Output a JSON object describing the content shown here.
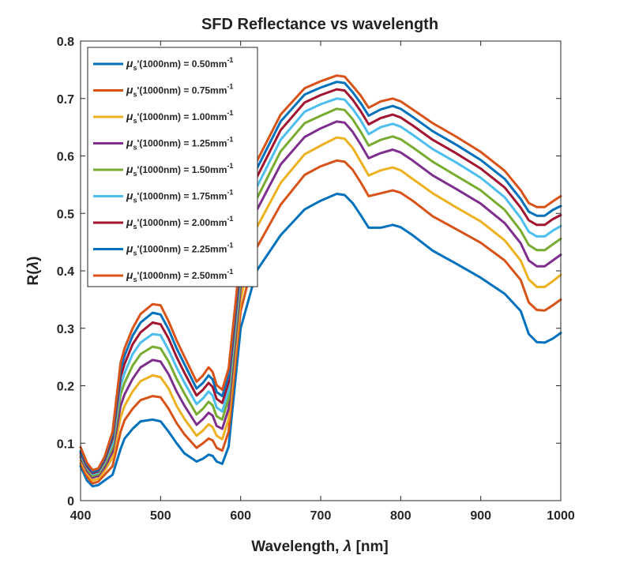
{
  "chart_data": {
    "type": "line",
    "title": "SFD Reflectance vs wavelength",
    "xlabel_prefix": "Wavelength, ",
    "xlabel_symbol": "λ",
    "xlabel_suffix": " [nm]",
    "ylabel_prefix": "R(",
    "ylabel_symbol": "λ",
    "ylabel_suffix": ")",
    "xlim": [
      400,
      1000
    ],
    "ylim": [
      0,
      0.8
    ],
    "xticks": [
      "400",
      "500",
      "600",
      "700",
      "800",
      "900",
      "1000"
    ],
    "yticks": [
      "0",
      "0.1",
      "0.2",
      "0.3",
      "0.4",
      "0.5",
      "0.6",
      "0.7",
      "0.8"
    ],
    "legend_position": "top-left",
    "legend_symbol": "μ",
    "legend_sub": "s",
    "legend_mid": "'(1000nm) = ",
    "legend_unit": "mm",
    "legend_exp": "-1",
    "x": [
      400,
      408,
      415,
      422,
      430,
      440,
      450,
      455,
      465,
      475,
      490,
      500,
      510,
      520,
      530,
      545,
      553,
      560,
      565,
      570,
      577,
      585,
      600,
      620,
      650,
      680,
      700,
      720,
      730,
      740,
      750,
      760,
      775,
      790,
      800,
      815,
      840,
      870,
      900,
      930,
      950,
      960,
      970,
      980,
      990,
      1000
    ],
    "series": [
      {
        "name": "0.50",
        "color": "#0072BD",
        "values": [
          0.06,
          0.035,
          0.025,
          0.027,
          0.035,
          0.045,
          0.09,
          0.108,
          0.125,
          0.138,
          0.141,
          0.138,
          0.12,
          0.1,
          0.082,
          0.068,
          0.073,
          0.08,
          0.078,
          0.068,
          0.064,
          0.094,
          0.3,
          0.4,
          0.462,
          0.507,
          0.522,
          0.534,
          0.532,
          0.518,
          0.497,
          0.475,
          0.475,
          0.48,
          0.476,
          0.462,
          0.435,
          0.412,
          0.388,
          0.36,
          0.33,
          0.29,
          0.276,
          0.275,
          0.282,
          0.292
        ]
      },
      {
        "name": "0.75",
        "color": "#D95319",
        "values": [
          0.065,
          0.042,
          0.03,
          0.033,
          0.045,
          0.06,
          0.12,
          0.14,
          0.16,
          0.175,
          0.182,
          0.18,
          0.16,
          0.135,
          0.115,
          0.092,
          0.1,
          0.108,
          0.105,
          0.092,
          0.087,
          0.12,
          0.33,
          0.44,
          0.515,
          0.567,
          0.582,
          0.592,
          0.59,
          0.576,
          0.554,
          0.53,
          0.535,
          0.54,
          0.536,
          0.522,
          0.495,
          0.472,
          0.449,
          0.418,
          0.384,
          0.345,
          0.332,
          0.331,
          0.34,
          0.35
        ]
      },
      {
        "name": "1.00",
        "color": "#EDB120",
        "values": [
          0.07,
          0.048,
          0.035,
          0.038,
          0.052,
          0.075,
          0.145,
          0.165,
          0.19,
          0.208,
          0.218,
          0.215,
          0.195,
          0.165,
          0.142,
          0.113,
          0.122,
          0.133,
          0.128,
          0.113,
          0.107,
          0.142,
          0.35,
          0.475,
          0.553,
          0.603,
          0.618,
          0.632,
          0.63,
          0.614,
          0.59,
          0.566,
          0.575,
          0.58,
          0.575,
          0.56,
          0.535,
          0.51,
          0.486,
          0.453,
          0.418,
          0.385,
          0.372,
          0.372,
          0.382,
          0.393
        ]
      },
      {
        "name": "1.25",
        "color": "#7E2F8E",
        "values": [
          0.075,
          0.052,
          0.04,
          0.043,
          0.058,
          0.085,
          0.165,
          0.185,
          0.212,
          0.232,
          0.245,
          0.242,
          0.22,
          0.19,
          0.165,
          0.132,
          0.142,
          0.153,
          0.148,
          0.13,
          0.125,
          0.16,
          0.37,
          0.505,
          0.585,
          0.633,
          0.648,
          0.66,
          0.658,
          0.642,
          0.62,
          0.596,
          0.605,
          0.611,
          0.606,
          0.592,
          0.566,
          0.542,
          0.517,
          0.483,
          0.448,
          0.418,
          0.408,
          0.408,
          0.418,
          0.428
        ]
      },
      {
        "name": "1.50",
        "color": "#77AC30",
        "values": [
          0.078,
          0.056,
          0.043,
          0.046,
          0.063,
          0.093,
          0.185,
          0.205,
          0.235,
          0.255,
          0.268,
          0.265,
          0.242,
          0.212,
          0.186,
          0.15,
          0.16,
          0.172,
          0.166,
          0.147,
          0.141,
          0.178,
          0.385,
          0.525,
          0.608,
          0.657,
          0.67,
          0.682,
          0.68,
          0.664,
          0.642,
          0.618,
          0.628,
          0.634,
          0.629,
          0.615,
          0.59,
          0.565,
          0.54,
          0.506,
          0.47,
          0.445,
          0.436,
          0.436,
          0.446,
          0.456
        ]
      },
      {
        "name": "1.75",
        "color": "#4DBEEE",
        "values": [
          0.08,
          0.058,
          0.046,
          0.049,
          0.067,
          0.1,
          0.2,
          0.222,
          0.255,
          0.275,
          0.29,
          0.288,
          0.262,
          0.232,
          0.205,
          0.168,
          0.178,
          0.19,
          0.183,
          0.162,
          0.155,
          0.192,
          0.398,
          0.545,
          0.628,
          0.677,
          0.69,
          0.7,
          0.698,
          0.682,
          0.662,
          0.638,
          0.65,
          0.656,
          0.651,
          0.637,
          0.612,
          0.588,
          0.562,
          0.528,
          0.492,
          0.468,
          0.46,
          0.46,
          0.47,
          0.478
        ]
      },
      {
        "name": "2.00",
        "color": "#A2142F",
        "values": [
          0.083,
          0.06,
          0.048,
          0.051,
          0.07,
          0.108,
          0.215,
          0.238,
          0.272,
          0.293,
          0.31,
          0.307,
          0.282,
          0.25,
          0.222,
          0.183,
          0.193,
          0.205,
          0.198,
          0.177,
          0.17,
          0.206,
          0.41,
          0.562,
          0.645,
          0.693,
          0.706,
          0.716,
          0.714,
          0.698,
          0.678,
          0.655,
          0.666,
          0.672,
          0.667,
          0.653,
          0.628,
          0.604,
          0.578,
          0.545,
          0.51,
          0.488,
          0.48,
          0.48,
          0.49,
          0.497
        ]
      },
      {
        "name": "2.25",
        "color": "#0072BD",
        "values": [
          0.086,
          0.063,
          0.05,
          0.053,
          0.073,
          0.114,
          0.228,
          0.252,
          0.287,
          0.31,
          0.327,
          0.324,
          0.298,
          0.265,
          0.237,
          0.195,
          0.205,
          0.218,
          0.211,
          0.189,
          0.182,
          0.218,
          0.42,
          0.577,
          0.66,
          0.707,
          0.719,
          0.729,
          0.727,
          0.711,
          0.692,
          0.67,
          0.681,
          0.687,
          0.682,
          0.668,
          0.643,
          0.619,
          0.593,
          0.56,
          0.525,
          0.503,
          0.496,
          0.496,
          0.506,
          0.513
        ]
      },
      {
        "name": "2.50",
        "color": "#D95319",
        "values": [
          0.093,
          0.066,
          0.053,
          0.056,
          0.076,
          0.12,
          0.24,
          0.265,
          0.3,
          0.325,
          0.342,
          0.34,
          0.312,
          0.279,
          0.25,
          0.207,
          0.218,
          0.232,
          0.224,
          0.201,
          0.193,
          0.23,
          0.43,
          0.59,
          0.672,
          0.718,
          0.73,
          0.74,
          0.738,
          0.722,
          0.705,
          0.684,
          0.695,
          0.7,
          0.695,
          0.681,
          0.657,
          0.633,
          0.607,
          0.574,
          0.54,
          0.518,
          0.511,
          0.511,
          0.521,
          0.53
        ]
      }
    ]
  }
}
